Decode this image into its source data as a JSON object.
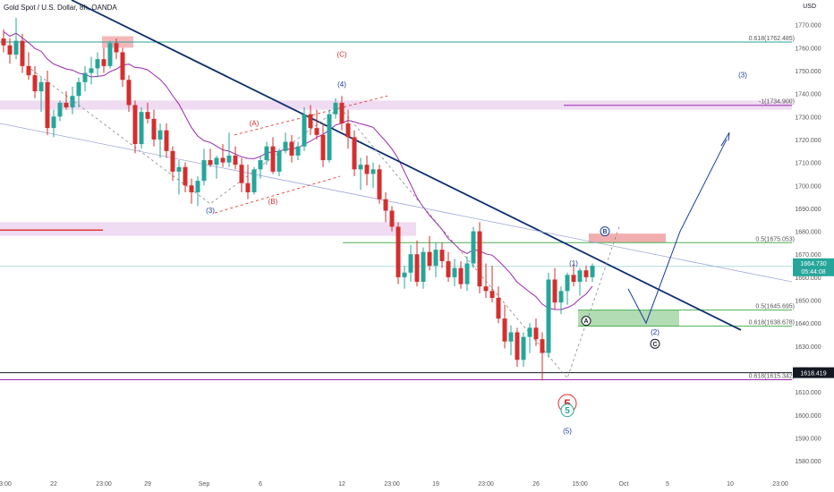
{
  "header": {
    "symbol_line": "Gold Spot / U.S. Dollar, 8h, OANDA",
    "currency": "USD"
  },
  "colors": {
    "up": "#26a69a",
    "down": "#d32f2f",
    "trend": "#0d2f6e",
    "ma": "#9c27b0",
    "wave": "#1e3c9c"
  },
  "price_tag": {
    "value": "1664.730",
    "countdown": "05:44:08"
  },
  "support_tag": {
    "value": "1618.419"
  },
  "chart_data": {
    "type": "candlestick",
    "ylim": [
      1575,
      1780
    ],
    "y_ticks": [
      1580,
      1590,
      1600,
      1610,
      1620,
      1630,
      1640,
      1650,
      1660,
      1670,
      1680,
      1690,
      1700,
      1710,
      1720,
      1730,
      1740,
      1750,
      1760,
      1770
    ],
    "x_ticks": [
      {
        "label": "23:00",
        "i": 0
      },
      {
        "label": "22",
        "i": 8
      },
      {
        "label": "23:00",
        "i": 16
      },
      {
        "label": "29",
        "i": 23
      },
      {
        "label": "Sep",
        "i": 32
      },
      {
        "label": "6",
        "i": 41
      },
      {
        "label": "12",
        "i": 54
      },
      {
        "label": "23:00",
        "i": 62
      },
      {
        "label": "19",
        "i": 69
      },
      {
        "label": "23:00",
        "i": 77
      },
      {
        "label": "26",
        "i": 85
      },
      {
        "label": "15:00",
        "i": 92
      },
      {
        "label": "Oct",
        "i": 99
      },
      {
        "label": "5",
        "i": 106
      },
      {
        "label": "10",
        "i": 116
      },
      {
        "label": "23:00",
        "i": 124
      }
    ],
    "candles": [
      [
        1764,
        1768,
        1758,
        1761
      ],
      [
        1761,
        1764,
        1753,
        1757
      ],
      [
        1757,
        1773,
        1755,
        1763
      ],
      [
        1763,
        1766,
        1749,
        1752
      ],
      [
        1752,
        1758,
        1746,
        1748
      ],
      [
        1748,
        1752,
        1738,
        1741
      ],
      [
        1741,
        1747,
        1732,
        1745
      ],
      [
        1745,
        1750,
        1722,
        1725
      ],
      [
        1725,
        1733,
        1721,
        1730
      ],
      [
        1730,
        1737,
        1728,
        1736
      ],
      [
        1736,
        1741,
        1733,
        1734
      ],
      [
        1734,
        1743,
        1731,
        1739
      ],
      [
        1739,
        1747,
        1734,
        1745
      ],
      [
        1745,
        1752,
        1741,
        1749
      ],
      [
        1749,
        1756,
        1744,
        1751
      ],
      [
        1751,
        1758,
        1747,
        1755
      ],
      [
        1755,
        1760,
        1749,
        1752
      ],
      [
        1752,
        1763,
        1751,
        1762
      ],
      [
        1762,
        1764,
        1755,
        1758
      ],
      [
        1758,
        1760,
        1743,
        1746
      ],
      [
        1746,
        1748,
        1732,
        1735
      ],
      [
        1735,
        1737,
        1714,
        1718
      ],
      [
        1718,
        1734,
        1716,
        1732
      ],
      [
        1732,
        1736,
        1727,
        1729
      ],
      [
        1729,
        1733,
        1717,
        1720
      ],
      [
        1720,
        1727,
        1712,
        1724
      ],
      [
        1724,
        1727,
        1712,
        1715
      ],
      [
        1715,
        1717,
        1702,
        1706
      ],
      [
        1706,
        1711,
        1696,
        1708
      ],
      [
        1708,
        1710,
        1697,
        1700
      ],
      [
        1700,
        1703,
        1692,
        1697
      ],
      [
        1697,
        1704,
        1691,
        1702
      ],
      [
        1702,
        1716,
        1700,
        1711
      ],
      [
        1711,
        1716,
        1708,
        1709
      ],
      [
        1709,
        1713,
        1703,
        1712
      ],
      [
        1712,
        1718,
        1708,
        1710
      ],
      [
        1710,
        1723,
        1708,
        1713
      ],
      [
        1713,
        1717,
        1707,
        1709
      ],
      [
        1709,
        1712,
        1697,
        1701
      ],
      [
        1701,
        1709,
        1694,
        1697
      ],
      [
        1697,
        1708,
        1696,
        1707
      ],
      [
        1707,
        1713,
        1703,
        1711
      ],
      [
        1711,
        1719,
        1709,
        1717
      ],
      [
        1717,
        1721,
        1705,
        1706
      ],
      [
        1706,
        1716,
        1704,
        1715
      ],
      [
        1715,
        1723,
        1714,
        1719
      ],
      [
        1719,
        1722,
        1710,
        1713
      ],
      [
        1713,
        1719,
        1711,
        1717
      ],
      [
        1717,
        1734,
        1715,
        1731
      ],
      [
        1731,
        1735,
        1722,
        1725
      ],
      [
        1725,
        1733,
        1720,
        1722
      ],
      [
        1722,
        1727,
        1708,
        1711
      ],
      [
        1711,
        1733,
        1710,
        1731
      ],
      [
        1731,
        1738,
        1729,
        1736
      ],
      [
        1736,
        1739,
        1724,
        1727
      ],
      [
        1727,
        1733,
        1716,
        1721
      ],
      [
        1721,
        1724,
        1704,
        1707
      ],
      [
        1707,
        1712,
        1698,
        1709
      ],
      [
        1709,
        1713,
        1700,
        1705
      ],
      [
        1705,
        1710,
        1699,
        1707
      ],
      [
        1707,
        1709,
        1692,
        1694
      ],
      [
        1694,
        1697,
        1684,
        1689
      ],
      [
        1689,
        1691,
        1680,
        1682
      ],
      [
        1682,
        1684,
        1657,
        1660
      ],
      [
        1660,
        1665,
        1655,
        1662
      ],
      [
        1662,
        1674,
        1658,
        1670
      ],
      [
        1670,
        1676,
        1656,
        1658
      ],
      [
        1658,
        1673,
        1655,
        1671
      ],
      [
        1671,
        1678,
        1663,
        1665
      ],
      [
        1665,
        1675,
        1660,
        1672
      ],
      [
        1672,
        1675,
        1664,
        1667
      ],
      [
        1667,
        1671,
        1658,
        1660
      ],
      [
        1660,
        1668,
        1656,
        1664
      ],
      [
        1664,
        1667,
        1655,
        1657
      ],
      [
        1657,
        1669,
        1654,
        1666
      ],
      [
        1666,
        1682,
        1664,
        1680
      ],
      [
        1680,
        1684,
        1653,
        1656
      ],
      [
        1656,
        1666,
        1651,
        1654
      ],
      [
        1654,
        1665,
        1649,
        1651
      ],
      [
        1651,
        1656,
        1640,
        1642
      ],
      [
        1642,
        1648,
        1629,
        1632
      ],
      [
        1632,
        1639,
        1626,
        1636
      ],
      [
        1636,
        1638,
        1621,
        1624
      ],
      [
        1624,
        1636,
        1621,
        1634
      ],
      [
        1634,
        1640,
        1627,
        1638
      ],
      [
        1638,
        1642,
        1630,
        1633
      ],
      [
        1633,
        1636,
        1615,
        1627
      ],
      [
        1627,
        1662,
        1625,
        1659
      ],
      [
        1659,
        1664,
        1646,
        1649
      ],
      [
        1649,
        1656,
        1644,
        1654
      ],
      [
        1654,
        1662,
        1648,
        1661
      ],
      [
        1661,
        1666,
        1656,
        1658
      ],
      [
        1658,
        1664,
        1652,
        1663
      ],
      [
        1663,
        1665,
        1658,
        1660
      ],
      [
        1660,
        1666,
        1658,
        1665
      ]
    ],
    "horizontal_levels": [
      {
        "label": "0.618(1762.485)",
        "price": 1762.485,
        "color": "#26a69a"
      },
      {
        "label": "-1(1734.900)",
        "price": 1734.9,
        "color": "#9c27b0"
      },
      {
        "label": "0.5(1675.053)",
        "price": 1675.053,
        "color": "#4caf50"
      },
      {
        "label": "0.5(1645.695)",
        "price": 1645.695,
        "color": "#4caf50"
      },
      {
        "label": "0.618(1638.678)",
        "price": 1638.678,
        "color": "#4caf50"
      },
      {
        "label": "0.618(1615.342)",
        "price": 1615.342,
        "color": "#9c27b0"
      }
    ],
    "wave_labels": [
      {
        "text": "(C)",
        "price": 1756,
        "i": 54,
        "color": "#d32f2f"
      },
      {
        "text": "(4)",
        "price": 1743,
        "i": 54,
        "color": "#1e3c9c"
      },
      {
        "text": "(A)",
        "price": 1726,
        "i": 40,
        "color": "#d32f2f"
      },
      {
        "text": "(3)",
        "price": 1688,
        "i": 33,
        "color": "#1e3c9c"
      },
      {
        "text": "(B)",
        "price": 1692,
        "i": 43,
        "color": "#d32f2f"
      },
      {
        "text": "(1)",
        "price": 1665,
        "i": 91,
        "color": "#1e3c9c"
      },
      {
        "text": "(3)",
        "price": 1747,
        "i": 118,
        "color": "#1e3c9c"
      },
      {
        "text": "(2)",
        "price": 1635,
        "i": 104,
        "color": "#1e3c9c"
      },
      {
        "text": "(5)",
        "price": 1592,
        "i": 90,
        "color": "#1e3c9c"
      }
    ],
    "circle_labels": [
      {
        "text": "B",
        "price": 1680,
        "i": 96,
        "color": "#1e3c9c",
        "r": 5,
        "size": 7
      },
      {
        "text": "A",
        "price": 1641,
        "i": 93,
        "color": "#131722",
        "r": 5,
        "size": 7
      },
      {
        "text": "C",
        "price": 1631,
        "i": 104,
        "color": "#131722",
        "r": 5,
        "size": 7
      },
      {
        "text": "5",
        "price": 1605,
        "i": 90,
        "color": "#d32f2f",
        "r": 10,
        "size": 14
      },
      {
        "text": "5",
        "price": 1602,
        "i": 90,
        "color": "#26a69a",
        "r": 7,
        "size": 10
      }
    ]
  }
}
